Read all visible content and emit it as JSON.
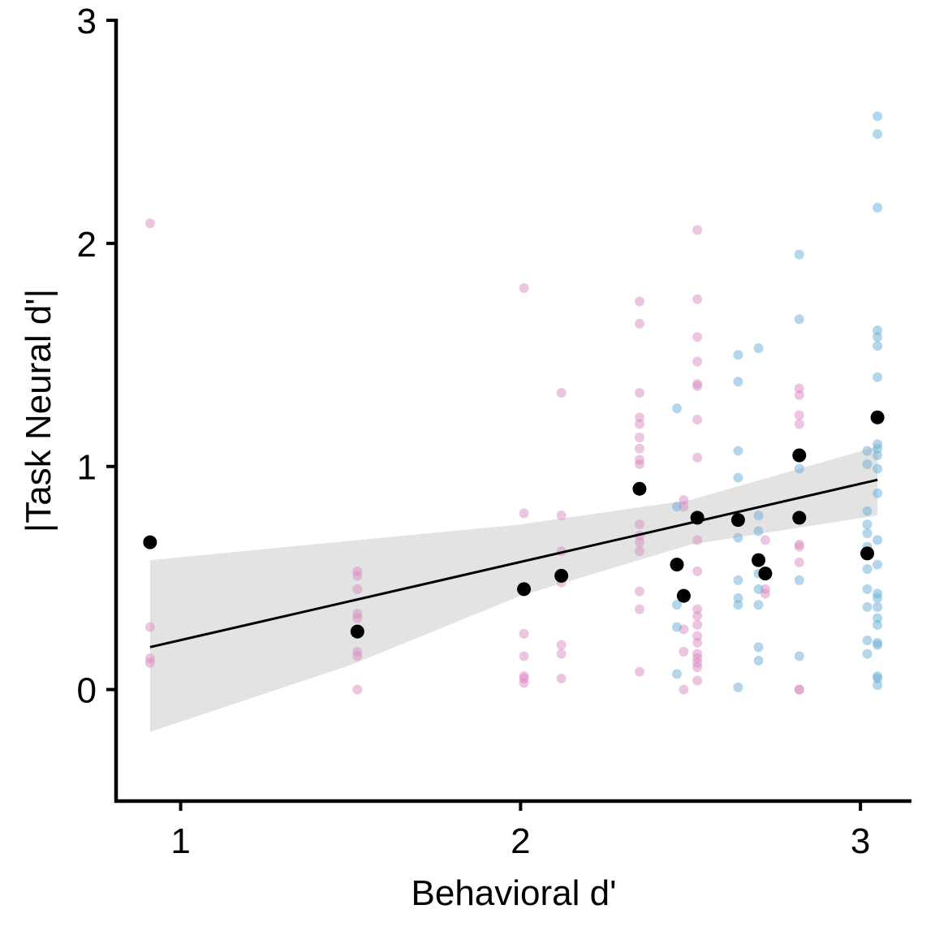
{
  "chart_data": {
    "type": "scatter",
    "title": "",
    "xlabel": "Behavioral d'",
    "ylabel": "|Task Neural d'|",
    "xlim": [
      0.81,
      3.15
    ],
    "ylim": [
      -0.5,
      3.0
    ],
    "x_ticks": [
      1,
      2,
      3
    ],
    "y_ticks": [
      0,
      1,
      2,
      3
    ],
    "x_tick_labels": [
      "1",
      "2",
      "3"
    ],
    "y_tick_labels": [
      "0",
      "1",
      "2",
      "3"
    ],
    "grid": false,
    "legend": "none",
    "colors": {
      "pink": "#d98cc4",
      "blue": "#6aaed6",
      "mean": "#000000",
      "fit_line": "#000000",
      "ci_band": "#d9d9d9"
    },
    "fit": {
      "x_range": [
        0.91,
        3.05
      ],
      "y_start": 0.19,
      "y_end": 0.94,
      "ci_upper": [
        [
          0.91,
          0.58
        ],
        [
          2.0,
          0.74
        ],
        [
          2.5,
          0.85
        ],
        [
          3.05,
          1.09
        ]
      ],
      "ci_lower": [
        [
          0.91,
          -0.19
        ],
        [
          1.5,
          0.11
        ],
        [
          2.0,
          0.42
        ],
        [
          2.5,
          0.65
        ],
        [
          3.05,
          0.78
        ]
      ]
    },
    "series": [
      {
        "color_key": "pink",
        "points": [
          [
            0.91,
            2.09
          ],
          [
            0.91,
            0.28
          ],
          [
            0.91,
            0.14
          ],
          [
            0.91,
            0.12
          ],
          [
            1.52,
            0.53
          ],
          [
            1.52,
            0.51
          ],
          [
            1.52,
            0.45
          ],
          [
            1.52,
            0.34
          ],
          [
            1.52,
            0.32
          ],
          [
            1.52,
            0.27
          ],
          [
            1.52,
            0.17
          ],
          [
            1.52,
            0.15
          ],
          [
            1.52,
            0.0
          ],
          [
            2.01,
            1.8
          ],
          [
            2.01,
            0.79
          ],
          [
            2.01,
            0.25
          ],
          [
            2.01,
            0.15
          ],
          [
            2.01,
            0.06
          ],
          [
            2.01,
            0.05
          ],
          [
            2.01,
            0.03
          ],
          [
            2.12,
            1.33
          ],
          [
            2.12,
            0.78
          ],
          [
            2.12,
            0.62
          ],
          [
            2.12,
            0.48
          ],
          [
            2.12,
            0.2
          ],
          [
            2.12,
            0.16
          ],
          [
            2.12,
            0.05
          ],
          [
            2.35,
            1.74
          ],
          [
            2.35,
            1.64
          ],
          [
            2.35,
            1.33
          ],
          [
            2.35,
            1.22
          ],
          [
            2.35,
            1.19
          ],
          [
            2.35,
            1.13
          ],
          [
            2.35,
            1.08
          ],
          [
            2.35,
            1.03
          ],
          [
            2.35,
            1.01
          ],
          [
            2.35,
            0.74
          ],
          [
            2.35,
            0.69
          ],
          [
            2.35,
            0.66
          ],
          [
            2.35,
            0.62
          ],
          [
            2.35,
            0.44
          ],
          [
            2.35,
            0.36
          ],
          [
            2.35,
            0.08
          ],
          [
            2.48,
            0.85
          ],
          [
            2.48,
            0.82
          ],
          [
            2.48,
            0.27
          ],
          [
            2.48,
            0.17
          ],
          [
            2.48,
            0.0
          ],
          [
            2.52,
            2.06
          ],
          [
            2.52,
            1.75
          ],
          [
            2.52,
            1.58
          ],
          [
            2.52,
            1.47
          ],
          [
            2.52,
            1.37
          ],
          [
            2.52,
            1.36
          ],
          [
            2.52,
            1.21
          ],
          [
            2.52,
            1.04
          ],
          [
            2.52,
            0.67
          ],
          [
            2.52,
            0.53
          ],
          [
            2.52,
            0.36
          ],
          [
            2.52,
            0.33
          ],
          [
            2.52,
            0.29
          ],
          [
            2.52,
            0.24
          ],
          [
            2.52,
            0.21
          ],
          [
            2.52,
            0.16
          ],
          [
            2.52,
            0.14
          ],
          [
            2.52,
            0.12
          ],
          [
            2.52,
            0.1
          ],
          [
            2.52,
            0.04
          ],
          [
            2.72,
            0.67
          ],
          [
            2.72,
            0.45
          ],
          [
            2.72,
            0.43
          ],
          [
            2.82,
            1.35
          ],
          [
            2.82,
            1.32
          ],
          [
            2.82,
            1.23
          ],
          [
            2.82,
            1.19
          ],
          [
            2.82,
            0.65
          ],
          [
            2.82,
            0.64
          ],
          [
            2.82,
            0.57
          ],
          [
            2.82,
            0.0
          ],
          [
            2.82,
            0.0
          ]
        ]
      },
      {
        "color_key": "blue",
        "points": [
          [
            2.46,
            1.26
          ],
          [
            2.46,
            0.82
          ],
          [
            2.46,
            0.38
          ],
          [
            2.46,
            0.28
          ],
          [
            2.46,
            0.07
          ],
          [
            2.64,
            1.5
          ],
          [
            2.64,
            1.38
          ],
          [
            2.64,
            1.07
          ],
          [
            2.64,
            0.95
          ],
          [
            2.64,
            0.68
          ],
          [
            2.64,
            0.49
          ],
          [
            2.64,
            0.41
          ],
          [
            2.64,
            0.38
          ],
          [
            2.64,
            0.01
          ],
          [
            2.7,
            1.53
          ],
          [
            2.7,
            0.78
          ],
          [
            2.7,
            0.71
          ],
          [
            2.7,
            0.52
          ],
          [
            2.7,
            0.45
          ],
          [
            2.7,
            0.38
          ],
          [
            2.7,
            0.19
          ],
          [
            2.7,
            0.13
          ],
          [
            2.82,
            1.95
          ],
          [
            2.82,
            1.66
          ],
          [
            2.82,
            0.99
          ],
          [
            2.82,
            0.49
          ],
          [
            2.82,
            0.15
          ],
          [
            3.02,
            1.07
          ],
          [
            3.02,
            1.01
          ],
          [
            3.02,
            0.8
          ],
          [
            3.02,
            0.74
          ],
          [
            3.02,
            0.7
          ],
          [
            3.02,
            0.64
          ],
          [
            3.02,
            0.54
          ],
          [
            3.02,
            0.45
          ],
          [
            3.02,
            0.37
          ],
          [
            3.02,
            0.22
          ],
          [
            3.02,
            0.16
          ],
          [
            3.05,
            2.57
          ],
          [
            3.05,
            2.49
          ],
          [
            3.05,
            2.16
          ],
          [
            3.05,
            1.61
          ],
          [
            3.05,
            1.58
          ],
          [
            3.05,
            1.54
          ],
          [
            3.05,
            1.4
          ],
          [
            3.05,
            1.1
          ],
          [
            3.05,
            1.08
          ],
          [
            3.05,
            1.05
          ],
          [
            3.05,
            0.99
          ],
          [
            3.05,
            0.88
          ],
          [
            3.05,
            0.67
          ],
          [
            3.05,
            0.56
          ],
          [
            3.05,
            0.43
          ],
          [
            3.05,
            0.41
          ],
          [
            3.05,
            0.37
          ],
          [
            3.05,
            0.32
          ],
          [
            3.05,
            0.29
          ],
          [
            3.05,
            0.21
          ],
          [
            3.05,
            0.2
          ],
          [
            3.05,
            0.06
          ],
          [
            3.05,
            0.05
          ],
          [
            3.05,
            0.02
          ]
        ]
      },
      {
        "color_key": "mean",
        "points": [
          [
            0.91,
            0.66
          ],
          [
            1.52,
            0.26
          ],
          [
            2.01,
            0.45
          ],
          [
            2.12,
            0.51
          ],
          [
            2.35,
            0.9
          ],
          [
            2.46,
            0.56
          ],
          [
            2.48,
            0.42
          ],
          [
            2.52,
            0.77
          ],
          [
            2.64,
            0.76
          ],
          [
            2.7,
            0.58
          ],
          [
            2.72,
            0.52
          ],
          [
            2.82,
            1.05
          ],
          [
            2.82,
            0.77
          ],
          [
            3.02,
            0.61
          ],
          [
            3.05,
            1.22
          ]
        ]
      }
    ]
  }
}
